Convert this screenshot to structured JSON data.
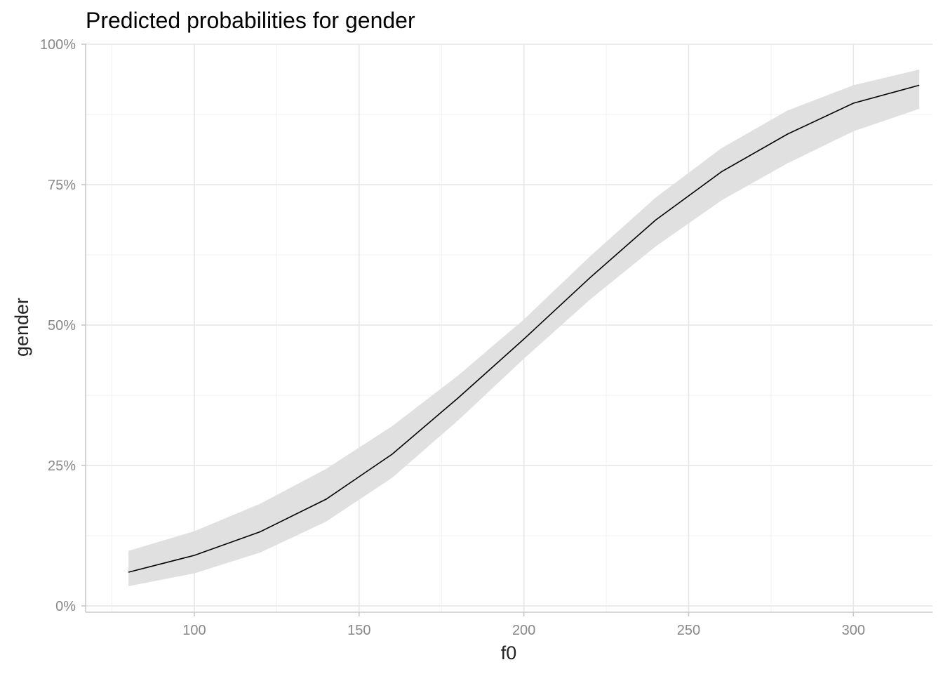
{
  "chart_data": {
    "type": "line",
    "title": "Predicted probabilities for gender",
    "xlabel": "f0",
    "ylabel": "gender",
    "xlim": [
      67,
      324
    ],
    "ylim": [
      0,
      1
    ],
    "x_ticks": [
      100,
      150,
      200,
      250,
      300
    ],
    "x_tick_labels": [
      "100",
      "150",
      "200",
      "250",
      "300"
    ],
    "y_ticks": [
      0,
      0.25,
      0.5,
      0.75,
      1.0
    ],
    "y_tick_labels": [
      "0%",
      "25%",
      "50%",
      "75%",
      "100%"
    ],
    "grid": true,
    "legend": "none",
    "colors": {
      "line": "#000000",
      "band": "#e0e0e0"
    },
    "series": [
      {
        "x": [
          80,
          100,
          120,
          140,
          160,
          180,
          200,
          220,
          240,
          260,
          280,
          300,
          320
        ],
        "y": [
          0.06,
          0.09,
          0.132,
          0.19,
          0.27,
          0.37,
          0.475,
          0.584,
          0.687,
          0.773,
          0.84,
          0.895,
          0.927
        ],
        "lower": [
          0.035,
          0.058,
          0.095,
          0.15,
          0.228,
          0.33,
          0.44,
          0.545,
          0.64,
          0.722,
          0.788,
          0.845,
          0.885
        ],
        "upper": [
          0.098,
          0.133,
          0.182,
          0.244,
          0.32,
          0.41,
          0.51,
          0.622,
          0.727,
          0.815,
          0.882,
          0.927,
          0.955
        ]
      }
    ]
  }
}
